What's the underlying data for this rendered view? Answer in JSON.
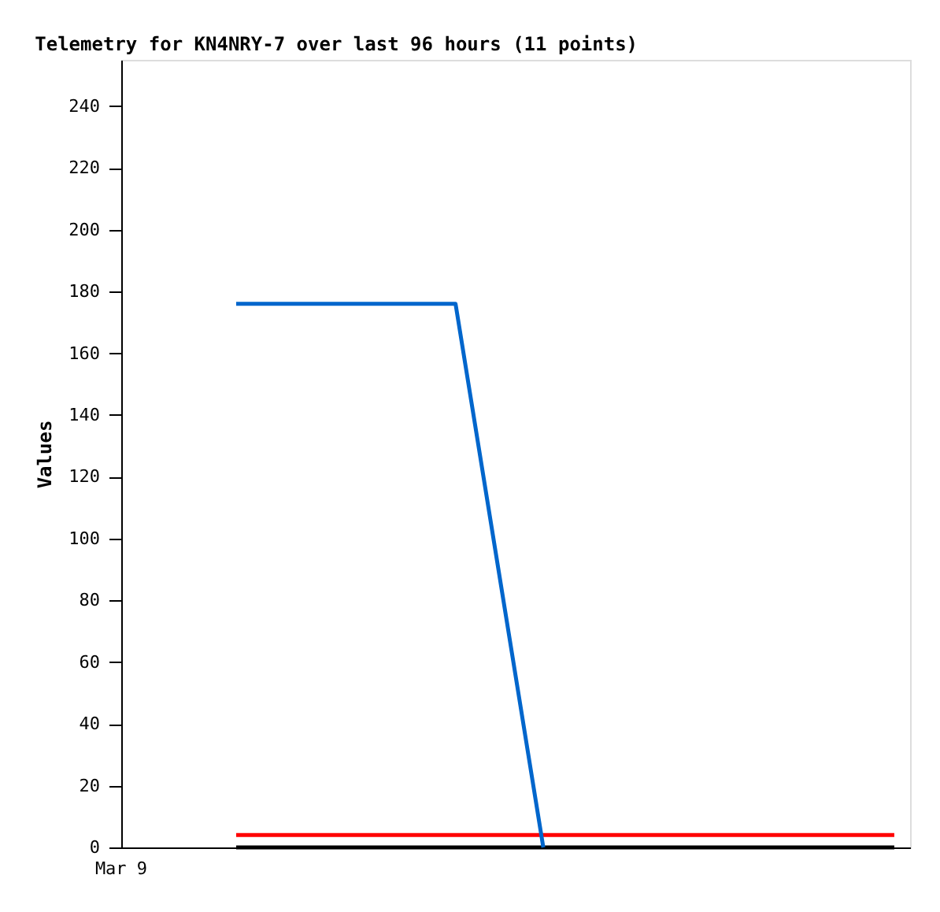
{
  "chart_data": {
    "type": "line",
    "title": "Telemetry for KN4NRY-7 over last 96 hours (11 points)",
    "ylabel": "Values",
    "annotations": [
      "Mar 9"
    ],
    "categories": [
      null,
      null,
      null,
      null,
      null,
      null,
      null,
      null,
      null,
      null,
      null,
      null,
      null,
      null,
      null,
      null
    ],
    "ylim": [
      0,
      255
    ],
    "yticks": [
      0,
      20,
      40,
      60,
      80,
      100,
      120,
      140,
      160,
      180,
      200,
      220,
      240
    ],
    "grid": false,
    "legend": false,
    "marker": "none",
    "line_style": "solid",
    "series": [
      {
        "color": "#000000",
        "values": [
          0,
          0,
          0,
          0,
          0,
          0,
          0,
          0,
          0,
          0,
          0,
          0,
          0,
          0,
          0,
          0
        ]
      },
      {
        "color": "#ff0000",
        "values": [
          4,
          4,
          4,
          4,
          4,
          4,
          4,
          4,
          4,
          4,
          4,
          4,
          4,
          4,
          4,
          4
        ]
      },
      {
        "color": "#0066cc",
        "values": [
          176,
          176,
          176,
          176,
          176,
          176,
          null,
          0,
          null,
          null,
          null,
          null,
          null,
          null,
          null,
          null
        ]
      }
    ]
  }
}
